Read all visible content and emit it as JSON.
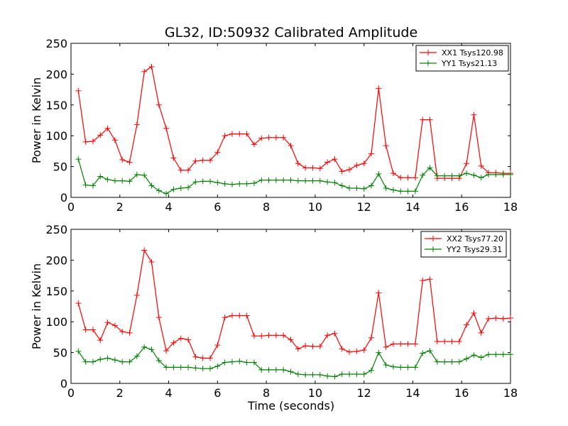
{
  "title": "GL32, ID:50932 Calibrated Amplitude",
  "xlabel": "Time (seconds)",
  "chart_data": [
    {
      "type": "line",
      "ylabel": "Power in Kelvin",
      "xlim": [
        0,
        18
      ],
      "ylim": [
        0,
        250
      ],
      "xticks": [
        0,
        2,
        4,
        6,
        8,
        10,
        12,
        14,
        16,
        18
      ],
      "yticks": [
        0,
        50,
        100,
        150,
        200,
        250
      ],
      "legend": "top-right",
      "x": [
        0.3,
        0.6,
        0.9,
        1.2,
        1.5,
        1.8,
        2.1,
        2.4,
        2.7,
        3.0,
        3.3,
        3.6,
        3.9,
        4.2,
        4.5,
        4.8,
        5.1,
        5.4,
        5.7,
        6.0,
        6.3,
        6.6,
        6.9,
        7.2,
        7.5,
        7.8,
        8.1,
        8.4,
        8.7,
        9.0,
        9.3,
        9.6,
        9.9,
        10.2,
        10.5,
        10.8,
        11.1,
        11.4,
        11.7,
        12.0,
        12.3,
        12.6,
        12.9,
        13.2,
        13.5,
        13.8,
        14.1,
        14.4,
        14.7,
        15.0,
        15.3,
        15.6,
        15.9,
        16.2,
        16.5,
        16.8,
        17.1,
        17.4,
        17.7,
        18.0
      ],
      "series": [
        {
          "name": "XX1 Tsys120.98",
          "color": "#ff0000",
          "values": [
            173,
            90,
            91,
            101,
            112,
            93,
            61,
            57,
            118,
            204,
            212,
            150,
            112,
            64,
            44,
            44,
            59,
            60,
            60,
            73,
            100,
            103,
            103,
            103,
            86,
            96,
            97,
            97,
            97,
            84,
            55,
            48,
            48,
            47,
            57,
            62,
            42,
            45,
            52,
            55,
            71,
            177,
            84,
            39,
            32,
            32,
            32,
            126,
            126,
            31,
            31,
            31,
            31,
            55,
            134,
            51,
            40,
            40,
            39,
            39
          ]
        },
        {
          "name": "YY1 Tsys21.13",
          "color": "#008000",
          "values": [
            62,
            20,
            19,
            34,
            29,
            27,
            27,
            26,
            37,
            36,
            19,
            11,
            6,
            13,
            15,
            16,
            25,
            26,
            26,
            24,
            22,
            21,
            22,
            22,
            23,
            28,
            28,
            28,
            28,
            28,
            27,
            27,
            27,
            27,
            25,
            24,
            19,
            15,
            15,
            14,
            19,
            38,
            15,
            12,
            10,
            10,
            10,
            36,
            48,
            35,
            35,
            35,
            35,
            39,
            36,
            32,
            37,
            37,
            37,
            37
          ]
        }
      ]
    },
    {
      "type": "line",
      "ylabel": "Power in Kelvin",
      "xlabel": "Time (seconds)",
      "xlim": [
        0,
        18
      ],
      "ylim": [
        0,
        250
      ],
      "xticks": [
        0,
        2,
        4,
        6,
        8,
        10,
        12,
        14,
        16,
        18
      ],
      "yticks": [
        0,
        50,
        100,
        150,
        200,
        250
      ],
      "legend": "top-right",
      "x": [
        0.3,
        0.6,
        0.9,
        1.2,
        1.5,
        1.8,
        2.1,
        2.4,
        2.7,
        3.0,
        3.3,
        3.6,
        3.9,
        4.2,
        4.5,
        4.8,
        5.1,
        5.4,
        5.7,
        6.0,
        6.3,
        6.6,
        6.9,
        7.2,
        7.5,
        7.8,
        8.1,
        8.4,
        8.7,
        9.0,
        9.3,
        9.6,
        9.9,
        10.2,
        10.5,
        10.8,
        11.1,
        11.4,
        11.7,
        12.0,
        12.3,
        12.6,
        12.9,
        13.2,
        13.5,
        13.8,
        14.1,
        14.4,
        14.7,
        15.0,
        15.3,
        15.6,
        15.9,
        16.2,
        16.5,
        16.8,
        17.1,
        17.4,
        17.7,
        18.0
      ],
      "series": [
        {
          "name": "XX2 Tsys77.20",
          "color": "#ff0000",
          "values": [
            130,
            87,
            87,
            70,
            99,
            94,
            84,
            82,
            143,
            216,
            197,
            107,
            53,
            66,
            73,
            71,
            43,
            41,
            41,
            62,
            107,
            110,
            110,
            110,
            77,
            77,
            78,
            78,
            78,
            71,
            56,
            61,
            60,
            60,
            78,
            81,
            56,
            51,
            52,
            54,
            74,
            147,
            59,
            64,
            64,
            64,
            64,
            167,
            169,
            68,
            68,
            68,
            68,
            95,
            114,
            82,
            105,
            106,
            105,
            106
          ]
        },
        {
          "name": "YY2 Tsys29.31",
          "color": "#008000",
          "values": [
            52,
            35,
            35,
            39,
            41,
            38,
            35,
            35,
            44,
            59,
            55,
            37,
            26,
            26,
            26,
            26,
            25,
            24,
            24,
            28,
            34,
            35,
            36,
            34,
            34,
            22,
            22,
            22,
            22,
            19,
            15,
            14,
            14,
            14,
            12,
            11,
            15,
            15,
            15,
            15,
            21,
            50,
            30,
            27,
            26,
            26,
            26,
            49,
            53,
            35,
            35,
            35,
            35,
            40,
            46,
            42,
            47,
            47,
            47,
            47
          ]
        }
      ]
    }
  ]
}
